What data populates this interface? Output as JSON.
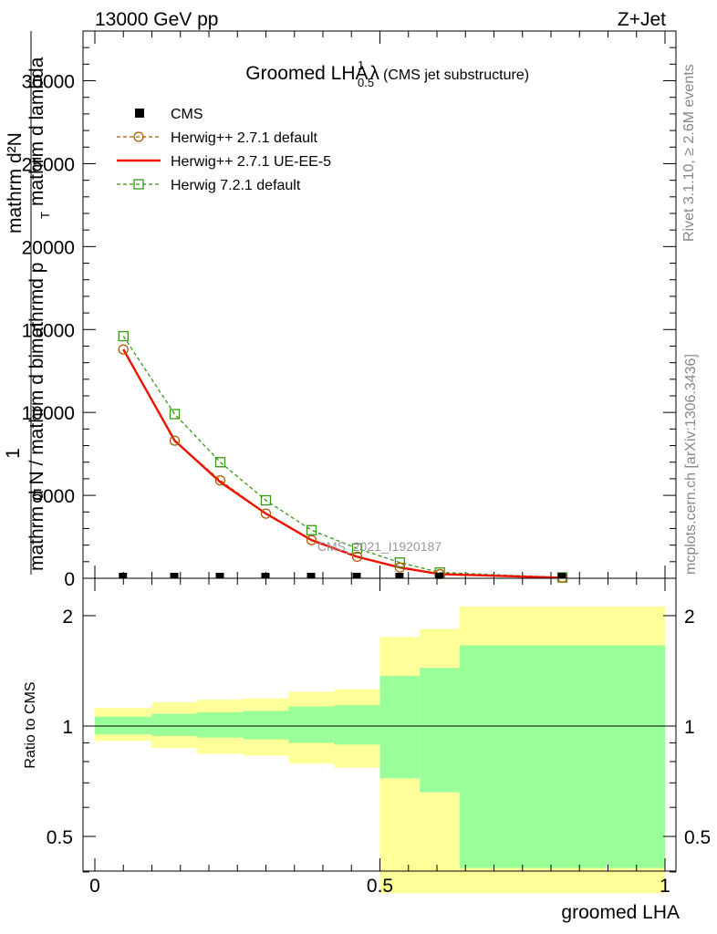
{
  "header": {
    "left": "13000 GeV pp",
    "right": "Z+Jet"
  },
  "side_labels": {
    "rivet": "Rivet 3.1.10, ≥ 2.6M events",
    "mcplots": "mcplots.cern.ch [arXiv:1306.3436]"
  },
  "chart_data": {
    "type": "line",
    "title": "Groomed LHA",
    "title_lambda": "λ",
    "title_sup": "1",
    "title_sub": "0.5",
    "subtitle": "(CMS jet substructure)",
    "watermark": "CMS_2021_I1920187",
    "xlabel": "groomed LHA",
    "ylabel_top": "1",
    "ylabel_num": "mathrm d²N",
    "ylabel_den_1": "mathrm d N / mathrm d bimathrmd p",
    "ylabel_den_sub": "T",
    "ylabel_den_2": "mathrm d lambda",
    "ratio_ylabel": "Ratio to CMS",
    "xlim": [
      0,
      1
    ],
    "ylim": [
      0,
      33000
    ],
    "ratio_ylim": [
      0.35,
      2.2
    ],
    "x_ticks": [
      "0",
      "0.5",
      "1"
    ],
    "y_ticks": [
      "0",
      "5000",
      "10000",
      "15000",
      "20000",
      "25000",
      "30000"
    ],
    "ratio_ticks": [
      "0.5",
      "1",
      "2"
    ],
    "legend": [
      {
        "name": "CMS",
        "marker": "square-filled",
        "color": "#000000"
      },
      {
        "name": "Herwig++ 2.7.1 default",
        "marker": "circle-open",
        "color": "#b35900",
        "dashed": true
      },
      {
        "name": "Herwig++ 2.7.1 UE-EE-5",
        "marker": "line",
        "color": "#ee1100",
        "dashed": false
      },
      {
        "name": "Herwig 7.2.1 default",
        "marker": "square-open",
        "color": "#339911",
        "dashed": true
      }
    ],
    "cms_x": [
      0.05,
      0.14,
      0.22,
      0.3,
      0.38,
      0.46,
      0.535,
      0.605,
      0.82
    ],
    "cms_y": [
      0,
      0,
      0,
      0,
      0,
      0,
      0,
      0,
      0
    ],
    "series": [
      {
        "name": "Herwig++ 2.7.1 default",
        "x": [
          0.05,
          0.14,
          0.22,
          0.3,
          0.38,
          0.46,
          0.535,
          0.605,
          0.82
        ],
        "y": [
          13800,
          8300,
          5900,
          3900,
          2300,
          1300,
          650,
          250,
          30
        ]
      },
      {
        "name": "Herwig++ 2.7.1 UE-EE-5",
        "x": [
          0.05,
          0.14,
          0.22,
          0.3,
          0.38,
          0.46,
          0.535,
          0.605,
          0.82
        ],
        "y": [
          13800,
          8300,
          5800,
          3900,
          2300,
          1300,
          650,
          250,
          30
        ]
      },
      {
        "name": "Herwig 7.2.1 default",
        "x": [
          0.05,
          0.14,
          0.22,
          0.3,
          0.38,
          0.46,
          0.535,
          0.605,
          0.82
        ],
        "y": [
          14600,
          9900,
          7000,
          4700,
          2900,
          1800,
          950,
          350,
          50
        ]
      }
    ],
    "ratio_bands": [
      {
        "x0": 0.0,
        "x1": 0.1,
        "y_lo": 0.91,
        "y_hi": 1.12,
        "g_lo": 0.95,
        "g_hi": 1.06
      },
      {
        "x0": 0.1,
        "x1": 0.18,
        "y_lo": 0.87,
        "y_hi": 1.16,
        "g_lo": 0.94,
        "g_hi": 1.08
      },
      {
        "x0": 0.18,
        "x1": 0.26,
        "y_lo": 0.84,
        "y_hi": 1.18,
        "g_lo": 0.93,
        "g_hi": 1.09
      },
      {
        "x0": 0.26,
        "x1": 0.34,
        "y_lo": 0.83,
        "y_hi": 1.19,
        "g_lo": 0.92,
        "g_hi": 1.1
      },
      {
        "x0": 0.34,
        "x1": 0.42,
        "y_lo": 0.79,
        "y_hi": 1.24,
        "g_lo": 0.9,
        "g_hi": 1.13
      },
      {
        "x0": 0.42,
        "x1": 0.5,
        "y_lo": 0.77,
        "y_hi": 1.26,
        "g_lo": 0.89,
        "g_hi": 1.14
      },
      {
        "x0": 0.5,
        "x1": 0.57,
        "y_lo": 0.35,
        "y_hi": 1.75,
        "g_lo": 0.72,
        "g_hi": 1.37
      },
      {
        "x0": 0.57,
        "x1": 0.64,
        "y_lo": 0.35,
        "y_hi": 1.84,
        "g_lo": 0.66,
        "g_hi": 1.44
      },
      {
        "x0": 0.64,
        "x1": 1.0,
        "y_lo": 0.35,
        "y_hi": 2.12,
        "g_lo": 0.41,
        "g_hi": 1.66
      }
    ],
    "colors": {
      "band_outer": "#ffff99",
      "band_inner": "#99ff99"
    }
  }
}
